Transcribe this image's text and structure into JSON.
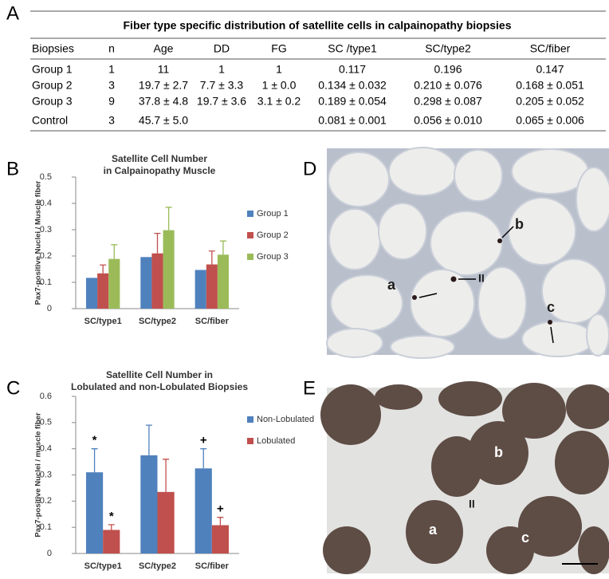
{
  "panel_labels": [
    "A",
    "B",
    "C",
    "D",
    "E"
  ],
  "table": {
    "title": "Fiber type specific distribution of satellite cells in calpainopathy biopsies",
    "columns": [
      "Biopsies",
      "n",
      "Age",
      "DD",
      "FG",
      "SC /type1",
      "SC/type2",
      "SC/fiber"
    ],
    "rows": [
      [
        "Group 1",
        "1",
        "11",
        "1",
        "1",
        "0.117",
        "0.196",
        "0.147"
      ],
      [
        "Group 2",
        "3",
        "19.7 ± 2.7",
        "7.7 ± 3.3",
        "1 ± 0.0",
        "0.134 ± 0.032",
        "0.210 ± 0.076",
        "0.168 ± 0.051"
      ],
      [
        "Group 3",
        "9",
        "37.8 ± 4.8",
        "19.7 ± 3.6",
        "3.1 ± 0.2",
        "0.189 ± 0.054",
        "0.298 ± 0.087",
        "0.205 ± 0.052"
      ],
      [
        "Control",
        "3",
        "45.7 ± 5.0",
        "",
        "",
        "0.081 ± 0.001",
        "0.056 ± 0.010",
        "0.065 ± 0.006"
      ]
    ]
  },
  "chart_data": [
    {
      "type": "bar",
      "title": [
        "Satellite Cell Number",
        "in Calpainopathy Muscle"
      ],
      "y_label": "Pax7-positive Nuclei / Muscle fiber",
      "categories": [
        "SC/type1",
        "SC/type2",
        "SC/fiber"
      ],
      "series": [
        {
          "name": "Group 1",
          "color": "#4f81bd",
          "values": [
            0.117,
            0.196,
            0.147
          ]
        },
        {
          "name": "Group 2",
          "color": "#c0504d",
          "values": [
            0.134,
            0.21,
            0.168
          ],
          "errors": [
            0.032,
            0.076,
            0.051
          ]
        },
        {
          "name": "Group 3",
          "color": "#9bbb59",
          "values": [
            0.189,
            0.298,
            0.205
          ],
          "errors": [
            0.054,
            0.087,
            0.052
          ]
        }
      ],
      "ylim": [
        0,
        0.5
      ],
      "yticks": [
        0,
        0.1,
        0.2,
        0.3,
        0.4,
        0.5
      ]
    },
    {
      "type": "bar",
      "title": [
        "Satellite Cell Number in",
        "Lobulated and non-Lobulated  Biopsies"
      ],
      "y_label": "Pax7-positive Nuclei / muscle fiber",
      "categories": [
        "SC/type1",
        "SC/type2",
        "SC/fiber"
      ],
      "series": [
        {
          "name": "Non-Lobulated",
          "color": "#4f81bd",
          "values": [
            0.31,
            0.375,
            0.325
          ],
          "errors": [
            0.09,
            0.115,
            0.075
          ],
          "marks": [
            "*",
            null,
            "+"
          ]
        },
        {
          "name": "Lobulated",
          "color": "#c0504d",
          "values": [
            0.09,
            0.235,
            0.108
          ],
          "errors": [
            0.02,
            0.125,
            0.03
          ],
          "marks": [
            "*",
            null,
            "+"
          ]
        }
      ],
      "ylim": [
        0,
        0.6
      ],
      "yticks": [
        0,
        0.1,
        0.2,
        0.3,
        0.4,
        0.5,
        0.6
      ]
    }
  ],
  "micrographs": [
    {
      "labels": [
        "b",
        "II",
        "a",
        "c"
      ]
    },
    {
      "labels": [
        "b",
        "II",
        "a",
        "c"
      ]
    }
  ]
}
